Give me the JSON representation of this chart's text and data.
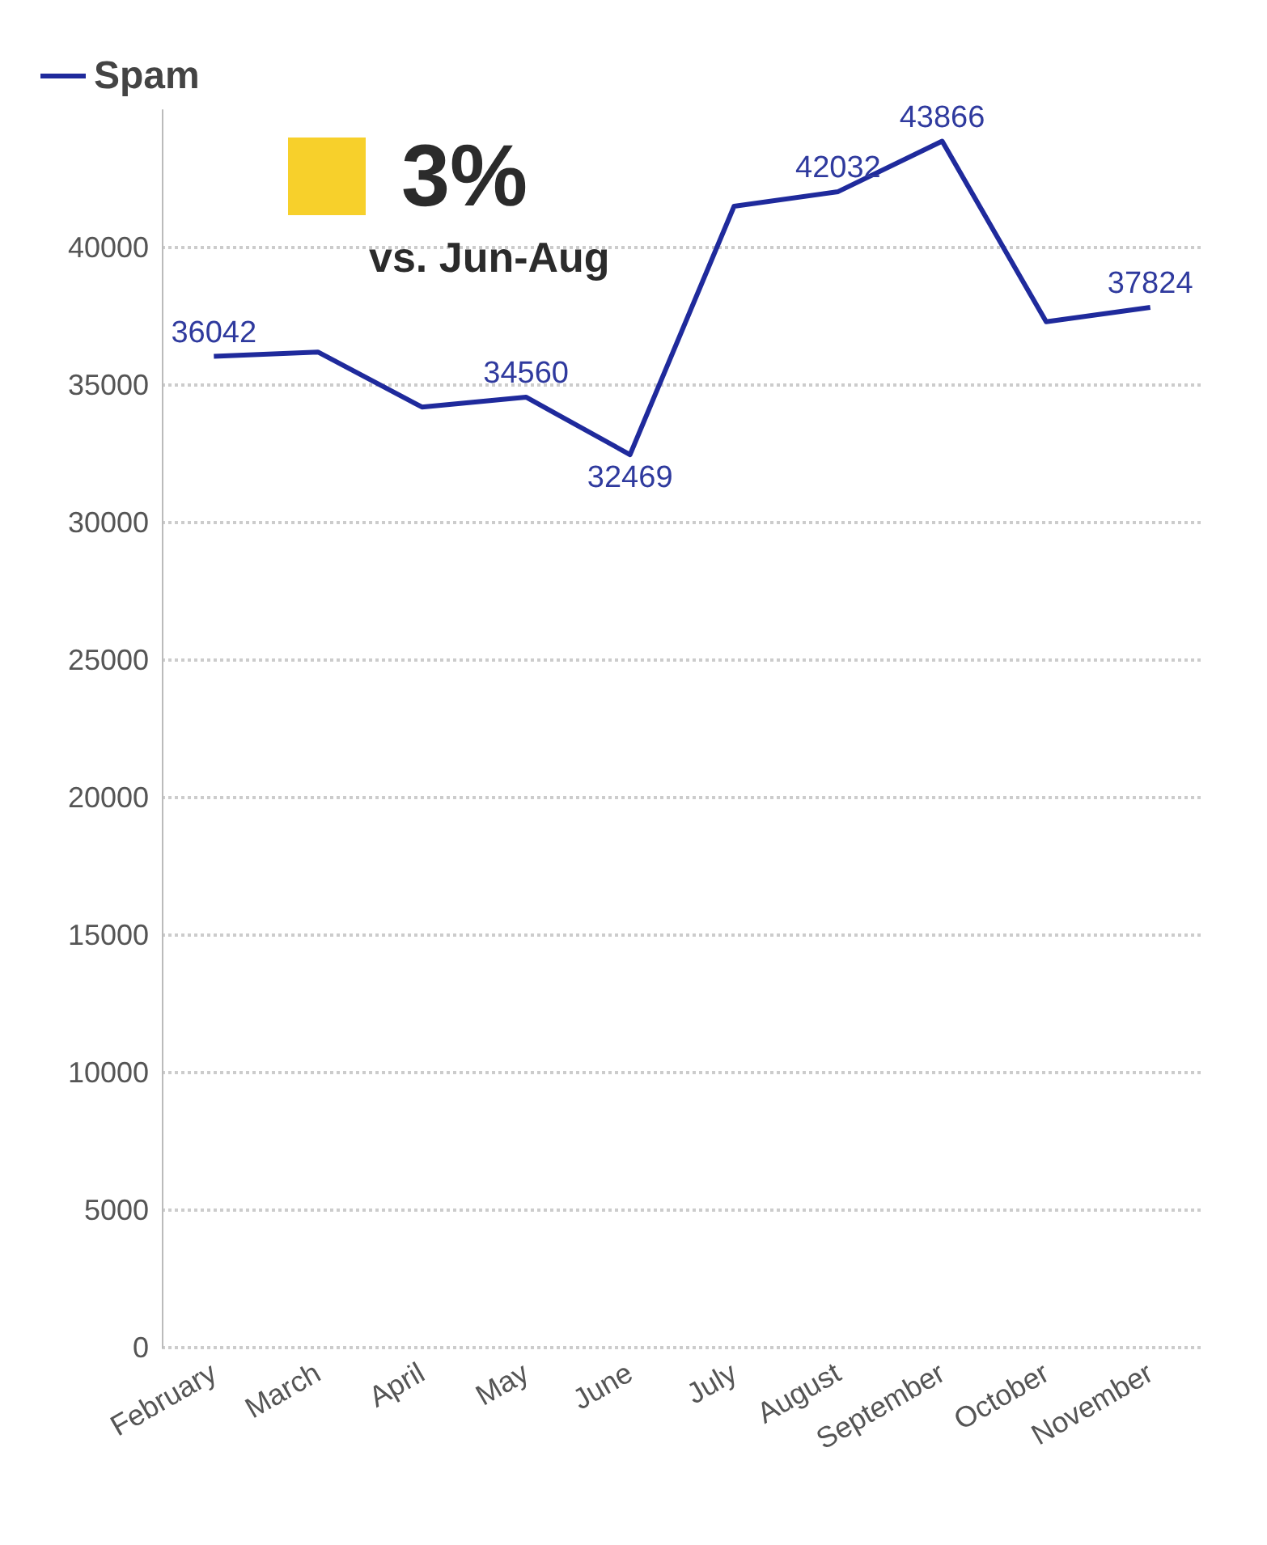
{
  "chart_data": {
    "type": "line",
    "categories": [
      "February",
      "March",
      "April",
      "May",
      "June",
      "July",
      "August",
      "September",
      "October",
      "November"
    ],
    "series": [
      {
        "name": "Spam",
        "color": "#1f2a9c",
        "values": [
          36042,
          36200,
          34200,
          34560,
          32469,
          41500,
          42032,
          43866,
          37300,
          37824
        ],
        "value_labels": [
          "36042",
          null,
          null,
          "34560",
          "32469",
          null,
          "42032",
          "43866",
          null,
          "37824"
        ]
      }
    ],
    "ylim": [
      0,
      45000
    ],
    "yticks": [
      0,
      5000,
      10000,
      15000,
      20000,
      25000,
      30000,
      35000,
      40000
    ],
    "grid": "y",
    "legend": "top left",
    "marker": "none",
    "annotations": [
      "3%",
      "vs. Jun-Aug"
    ]
  }
}
